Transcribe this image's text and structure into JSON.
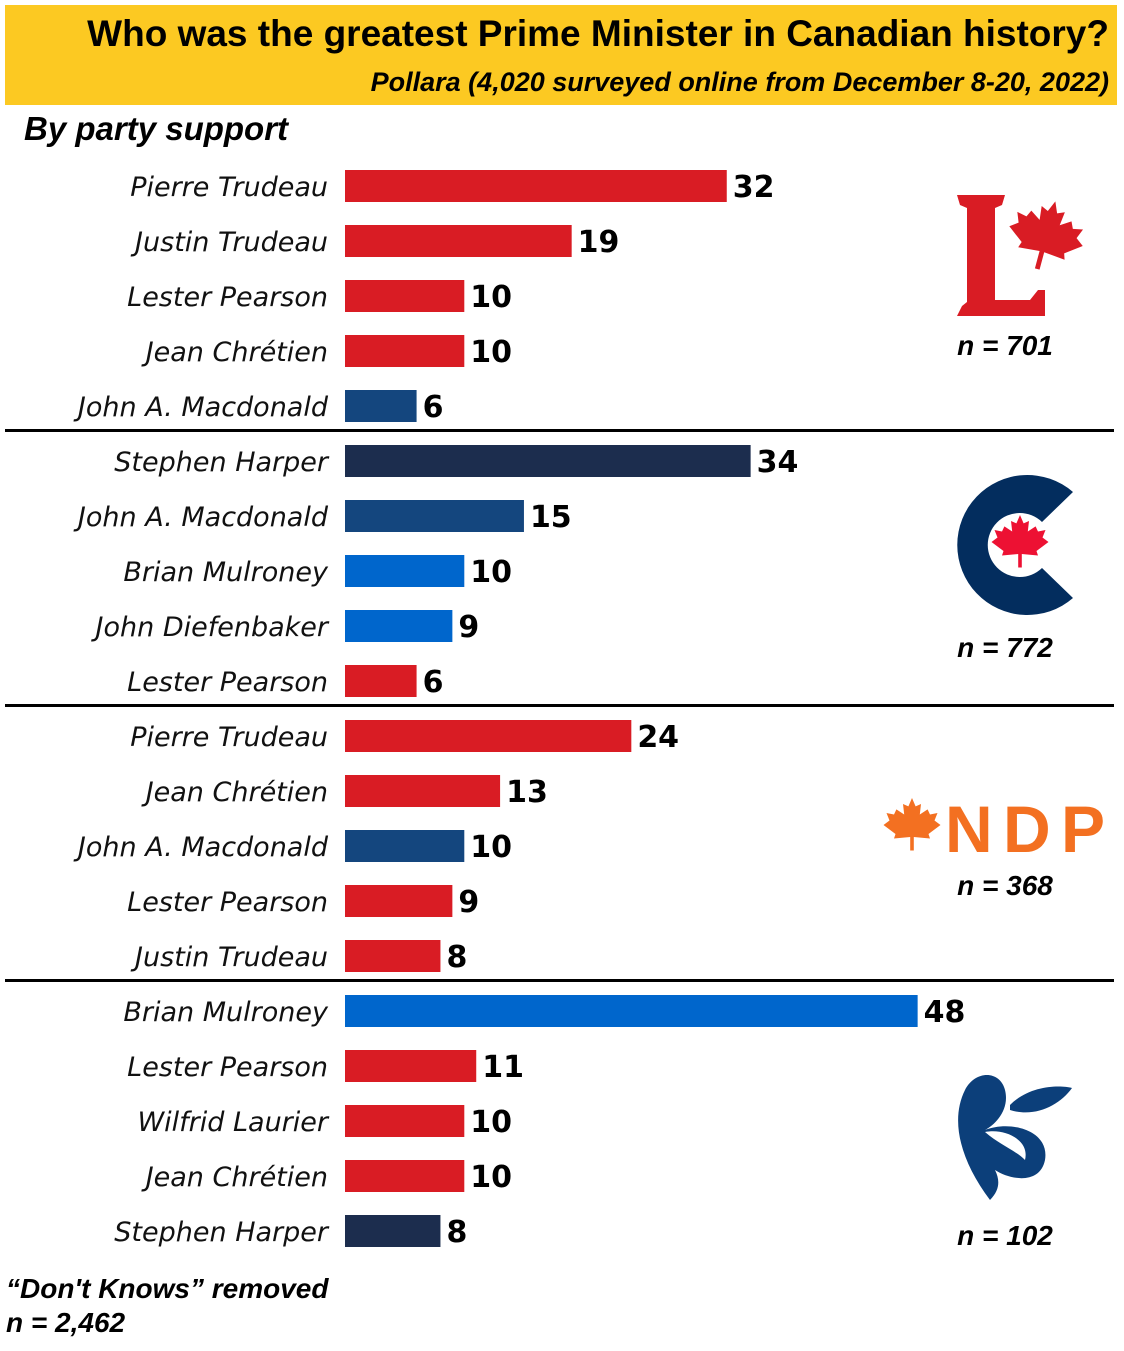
{
  "title": "Who was the greatest Prime Minister in Canadian history?",
  "subtitle": "Pollara (4,020 surveyed online from December 8-20, 2022)",
  "section_label": "By party support",
  "footnote": "“Don't Knows” removed",
  "footnote_n": "n = 2,462",
  "colors": {
    "Liberal": "#d91c24",
    "Conservative-Harper": "#1c2d4e",
    "Conservative-Macdonald": "#14467e",
    "Conservative-PC": "#0066cc",
    "header": "#fcc922"
  },
  "chart_data": {
    "type": "bar",
    "orientation": "horizontal",
    "title": "Who was the greatest Prime Minister in Canadian history?",
    "grid": false,
    "groups": [
      {
        "party": "Liberal",
        "logo": "liberal-logo",
        "n": "n = 701",
        "categories": [
          "Pierre Trudeau",
          "Justin Trudeau",
          "Lester Pearson",
          "Jean Chrétien",
          "John A. Macdonald"
        ],
        "values": [
          32,
          19,
          10,
          10,
          6
        ],
        "bar_colors": [
          "#d91c24",
          "#d91c24",
          "#d91c24",
          "#d91c24",
          "#14467e"
        ]
      },
      {
        "party": "Conservative",
        "logo": "conservative-logo",
        "n": "n = 772",
        "categories": [
          "Stephen Harper",
          "John A. Macdonald",
          "Brian Mulroney",
          "John Diefenbaker",
          "Lester Pearson"
        ],
        "values": [
          34,
          15,
          10,
          9,
          6
        ],
        "bar_colors": [
          "#1c2d4e",
          "#14467e",
          "#0066cc",
          "#0066cc",
          "#d91c24"
        ]
      },
      {
        "party": "NDP",
        "logo": "ndp-logo",
        "logo_text": "NDP",
        "n": "n = 368",
        "categories": [
          "Pierre Trudeau",
          "Jean Chrétien",
          "John A. Macdonald",
          "Lester Pearson",
          "Justin Trudeau"
        ],
        "values": [
          24,
          13,
          10,
          9,
          8
        ],
        "bar_colors": [
          "#d91c24",
          "#d91c24",
          "#14467e",
          "#d91c24",
          "#d91c24"
        ]
      },
      {
        "party": "Bloc Québécois",
        "logo": "bloc-logo",
        "n": "n = 102",
        "categories": [
          "Brian Mulroney",
          "Lester Pearson",
          "Wilfrid Laurier",
          "Jean Chrétien",
          "Stephen Harper"
        ],
        "values": [
          48,
          11,
          10,
          10,
          8
        ],
        "bar_colors": [
          "#0066cc",
          "#d91c24",
          "#d91c24",
          "#d91c24",
          "#1c2d4e"
        ]
      }
    ]
  }
}
